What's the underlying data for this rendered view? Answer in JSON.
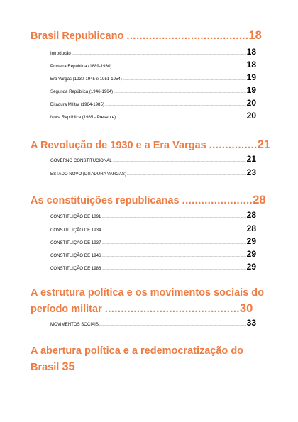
{
  "sections": [
    {
      "title": "Brasil Republicano",
      "dots": "......................................",
      "page": "18",
      "items": [
        {
          "label": "Introdução",
          "page": "18"
        },
        {
          "label": "Primeira República (1889-1930)",
          "page": "18"
        },
        {
          "label": "Era Vargas (1930-1945 e 1951-1954)",
          "page": "19"
        },
        {
          "label": "Segunda República (1946-1964)",
          "page": "19"
        },
        {
          "label": "Ditadura Militar (1964-1985)",
          "page": "20"
        },
        {
          "label": "Nova República (1985 - Presente)",
          "page": "20"
        }
      ]
    },
    {
      "title": "A Revolução de 1930 e a Era Vargas",
      "dots": "...............",
      "page": "21",
      "items": [
        {
          "label": "GOVERNO CONSTITUCIONAL",
          "page": "21"
        },
        {
          "label": "ESTADO NOVO (DITADURA VARGAS)",
          "page": "23"
        }
      ]
    },
    {
      "title": "As constituições republicanas",
      "dots": "......................",
      "page": "28",
      "items": [
        {
          "label": "CONSTITUIÇÃO DE 1891",
          "page": "28"
        },
        {
          "label": "CONSTITUIÇÃO DE 1934",
          "page": "28"
        },
        {
          "label": "CONSTITUIÇÃO DE 1937",
          "page": "29"
        },
        {
          "label": "CONSTITUIÇÃO DE 1946",
          "page": "29"
        },
        {
          "label": "CONSTITUIÇÃO DE 1988",
          "page": "29"
        }
      ]
    },
    {
      "title": "A estrutura política e os movimentos sociais do período militar",
      "dots": "..........................................",
      "page": "30",
      "items": [
        {
          "label": "MOVIMENTOS SOCIAIS",
          "page": "33"
        }
      ]
    },
    {
      "title": "A abertura política e a redemocratização do Brasil",
      "page": "35",
      "items": []
    }
  ]
}
